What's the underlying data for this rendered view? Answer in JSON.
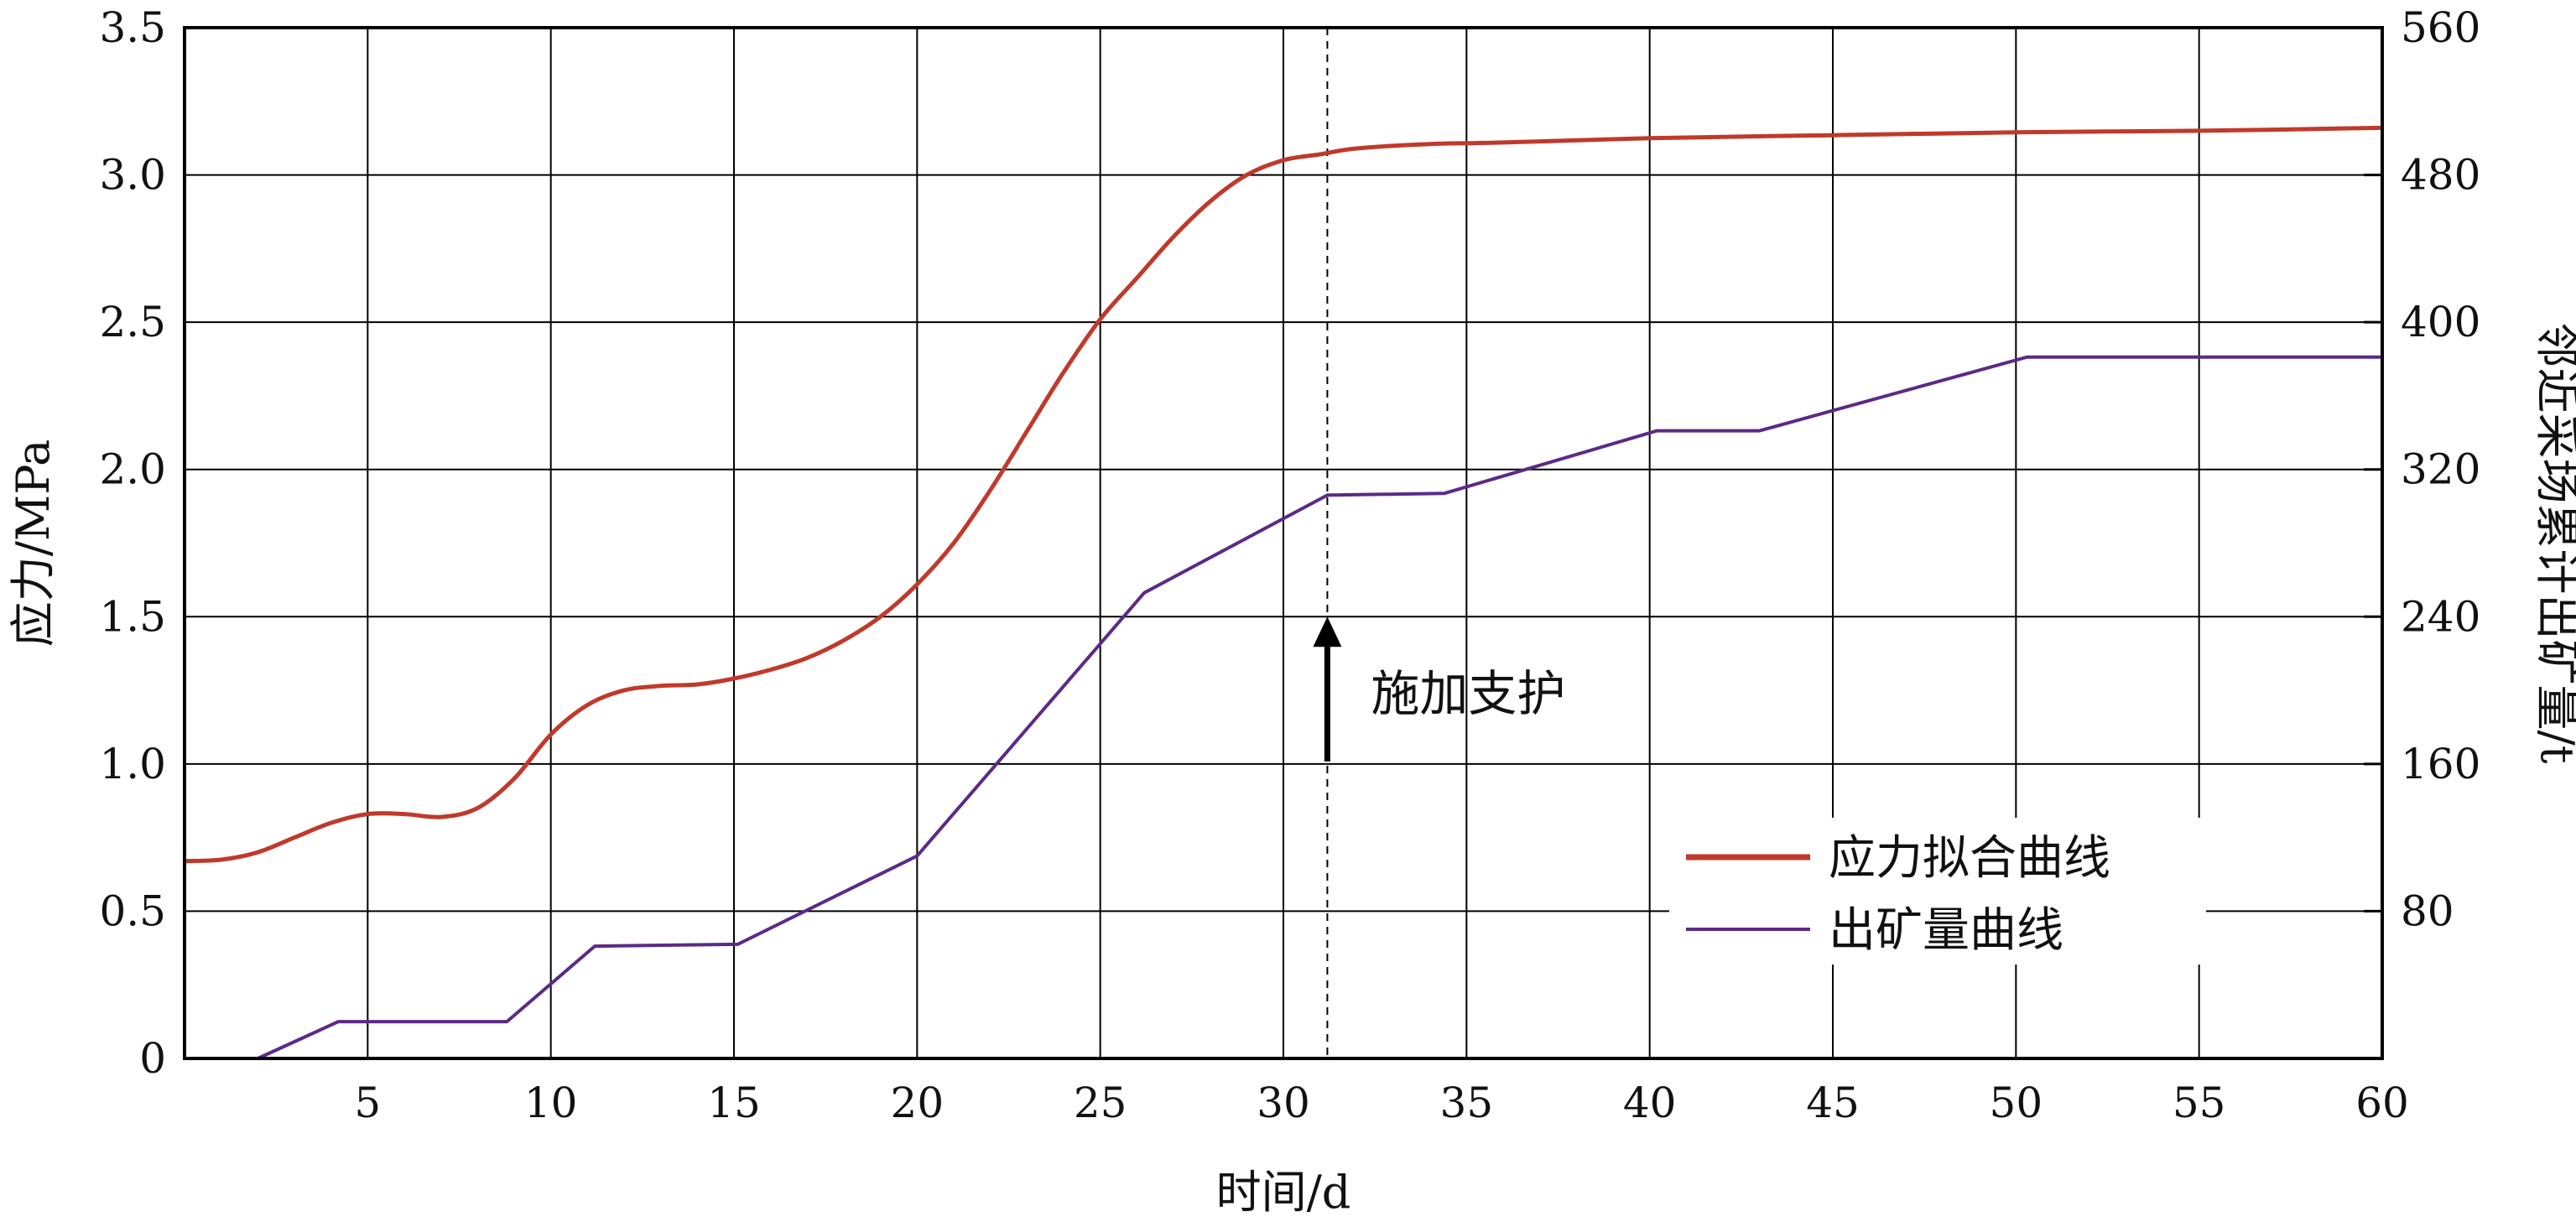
{
  "chart_data": {
    "type": "line",
    "xlabel": "时间/d",
    "ylabel_left": "应力/MPa",
    "ylabel_right": "邻近采场累计出矿量/t",
    "xlim": [
      0,
      60
    ],
    "ylim_left": [
      0,
      3.5
    ],
    "ylim_right": [
      0,
      560
    ],
    "x_ticks": [
      5,
      10,
      15,
      20,
      25,
      30,
      35,
      40,
      45,
      50,
      55,
      60
    ],
    "y_left_ticks": [
      0,
      0.5,
      1.0,
      1.5,
      2.0,
      2.5,
      3.0,
      3.5
    ],
    "y_left_tick_labels": [
      "0",
      "0.5",
      "1.0",
      "1.5",
      "2.0",
      "2.5",
      "3.0",
      "3.5"
    ],
    "y_right_ticks": [
      80,
      160,
      240,
      320,
      400,
      480,
      560
    ],
    "grid": true,
    "legend_position": "bottom-right",
    "vline_x": 31.2,
    "annotation": {
      "text": "施加支护",
      "x": 31.2,
      "y_from": 1.0,
      "y_to": 1.5
    },
    "series": [
      {
        "name": "应力拟合曲线",
        "axis": "left",
        "color": "#c0392b",
        "x": [
          0,
          1,
          2,
          3,
          4,
          5,
          6,
          7,
          8,
          9,
          10,
          11,
          12,
          13,
          14,
          15,
          16,
          17,
          18,
          19,
          20,
          21,
          22,
          23,
          24,
          25,
          26,
          27,
          28,
          29,
          30,
          31,
          32,
          34,
          36,
          40,
          45,
          50,
          55,
          60
        ],
        "y": [
          0.67,
          0.675,
          0.7,
          0.75,
          0.8,
          0.83,
          0.83,
          0.82,
          0.85,
          0.95,
          1.1,
          1.2,
          1.25,
          1.265,
          1.27,
          1.29,
          1.32,
          1.36,
          1.42,
          1.5,
          1.61,
          1.75,
          1.93,
          2.13,
          2.33,
          2.51,
          2.65,
          2.79,
          2.91,
          3.0,
          3.05,
          3.07,
          3.09,
          3.105,
          3.11,
          3.125,
          3.135,
          3.145,
          3.15,
          3.16
        ]
      },
      {
        "name": "出矿量曲线",
        "axis": "right",
        "color": "#5b2a86",
        "x": [
          2,
          4.2,
          8.8,
          11.2,
          15.1,
          20,
          26.2,
          31.2,
          34.4,
          40.2,
          43,
          50.3,
          60
        ],
        "y": [
          0,
          20,
          20,
          61,
          62,
          110,
          253,
          306,
          307,
          341,
          341,
          381,
          381
        ]
      }
    ]
  }
}
